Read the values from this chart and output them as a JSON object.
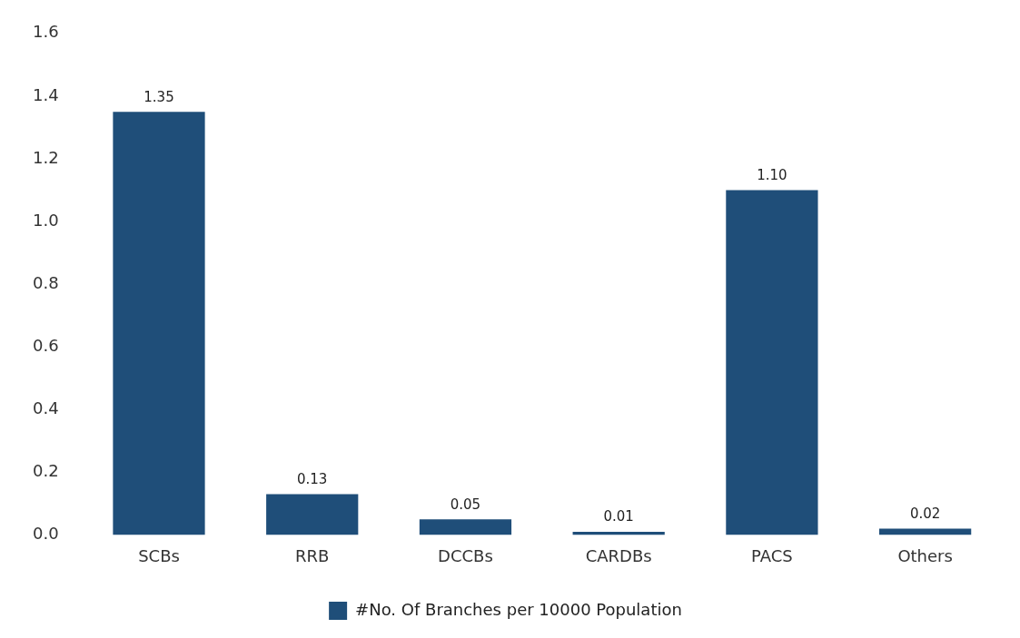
{
  "chart_data": {
    "type": "bar",
    "categories": [
      "SCBs",
      "RRB",
      "DCCBs",
      "CARDBs",
      "PACS",
      "Others"
    ],
    "series": [
      {
        "name": "#No. Of Branches per 10000 Population",
        "color": "#1f4e79",
        "values": [
          1.35,
          0.13,
          0.05,
          0.01,
          1.1,
          0.02
        ],
        "value_labels": [
          "1.35",
          "0.13",
          "0.05",
          "0.01",
          "1.10",
          "0.02"
        ]
      }
    ],
    "ylim": [
      0,
      1.6
    ],
    "yticks": [
      {
        "value": 0,
        "label": "0.0"
      },
      {
        "value": 0.2,
        "label": "0.2"
      },
      {
        "value": 0.4,
        "label": "0.4"
      },
      {
        "value": 0.6,
        "label": "0.6"
      },
      {
        "value": 0.8,
        "label": "0.8"
      },
      {
        "value": 1,
        "label": "1.0"
      },
      {
        "value": 1.2,
        "label": "1.2"
      },
      {
        "value": 1.4,
        "label": "1.4"
      },
      {
        "value": 1.6,
        "label": "1.6"
      }
    ],
    "grid": false,
    "legend": "bottom"
  }
}
